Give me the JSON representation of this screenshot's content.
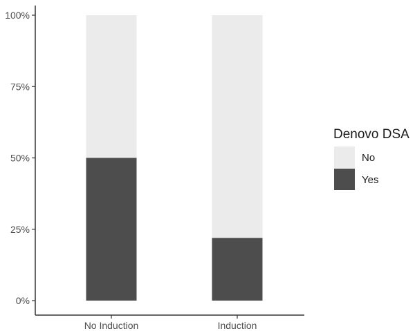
{
  "chart_data": {
    "type": "bar",
    "stacked": true,
    "normalized": true,
    "categories": [
      "No Induction",
      "Induction"
    ],
    "series": [
      {
        "name": "Yes",
        "values": [
          50,
          22
        ],
        "color": "#4d4d4d"
      },
      {
        "name": "No",
        "values": [
          50,
          78
        ],
        "color": "#ebebeb"
      }
    ],
    "ylim": [
      0,
      100
    ],
    "yticks": [
      {
        "value": 0,
        "label": "0%"
      },
      {
        "value": 25,
        "label": "25%"
      },
      {
        "value": 50,
        "label": "50%"
      },
      {
        "value": 75,
        "label": "75%"
      },
      {
        "value": 100,
        "label": "100%"
      }
    ],
    "title": "",
    "xlabel": "",
    "ylabel": "",
    "grid": false,
    "legend": {
      "title": "Denovo DSA",
      "placement": "right",
      "entries": [
        {
          "label": "No",
          "color": "#ebebeb"
        },
        {
          "label": "Yes",
          "color": "#4d4d4d"
        }
      ]
    }
  }
}
